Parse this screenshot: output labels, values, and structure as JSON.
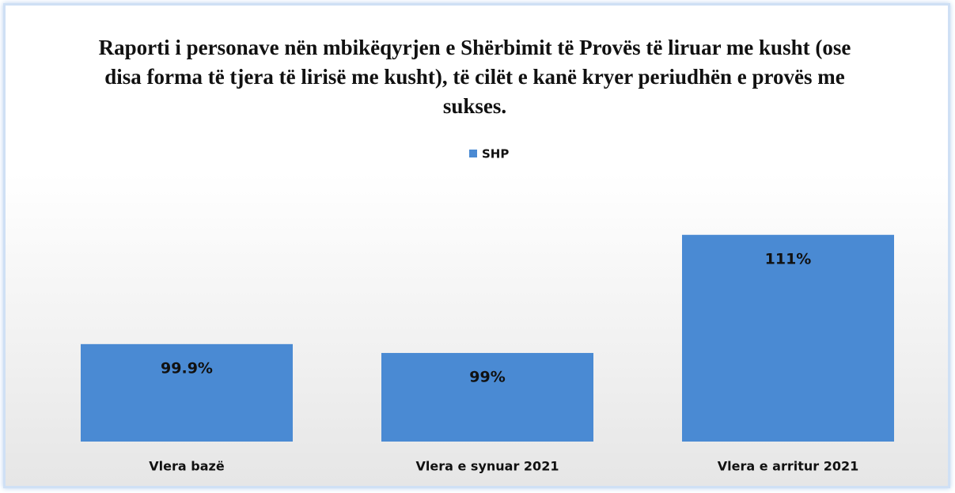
{
  "chart_data": {
    "type": "bar",
    "title": "Raporti i personave nën mbikëqyrjen e Shërbimit të Provës të liruar me kusht (ose disa forma të tjera të lirisë me kusht), të cilët e kanë kryer periudhën e provës me sukses.",
    "categories": [
      "Vlera bazë",
      "Vlera e synuar 2021",
      "Vlera e arritur 2021"
    ],
    "series": [
      {
        "name": "SHP",
        "color": "#4a8ad3",
        "values": [
          99.9,
          99,
          111
        ],
        "value_labels": [
          "99.9%",
          "99%",
          "111%"
        ]
      }
    ],
    "ylim": [
      90,
      115
    ]
  }
}
